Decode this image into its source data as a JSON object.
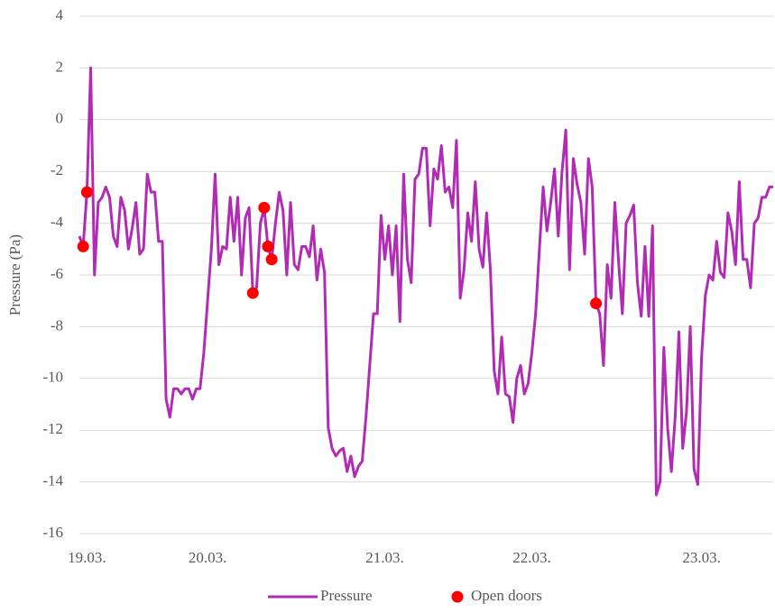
{
  "chart_data": {
    "type": "line",
    "y_label": "Pressure (Pa)",
    "categories": [
      null,
      null,
      "19.03.",
      null,
      null,
      null,
      null,
      null,
      null,
      null,
      null,
      null,
      null,
      null,
      null,
      null,
      null,
      null,
      null,
      null,
      null,
      null,
      null,
      null,
      null,
      null,
      null,
      null,
      null,
      null,
      null,
      null,
      null,
      null,
      "20.03.",
      null,
      null,
      null,
      null,
      null,
      null,
      null,
      null,
      null,
      null,
      null,
      null,
      null,
      null,
      null,
      null,
      null,
      null,
      null,
      null,
      null,
      null,
      null,
      null,
      null,
      null,
      null,
      null,
      null,
      null,
      null,
      null,
      null,
      null,
      null,
      null,
      null,
      null,
      null,
      null,
      null,
      null,
      null,
      null,
      null,
      null,
      "21.03.",
      null,
      null,
      null,
      null,
      null,
      null,
      null,
      null,
      null,
      null,
      null,
      null,
      null,
      null,
      null,
      null,
      null,
      null,
      null,
      null,
      null,
      null,
      null,
      null,
      null,
      null,
      null,
      null,
      null,
      null,
      null,
      null,
      null,
      null,
      null,
      null,
      null,
      null,
      "22.03.",
      null,
      null,
      null,
      null,
      null,
      null,
      null,
      null,
      null,
      null,
      null,
      null,
      null,
      null,
      null,
      null,
      null,
      null,
      null,
      null,
      null,
      null,
      null,
      null,
      null,
      null,
      null,
      null,
      null,
      null,
      null,
      null,
      null,
      null,
      null,
      null,
      null,
      null,
      null,
      null,
      null,
      null,
      null,
      null,
      "23.03.",
      null,
      null,
      null,
      null,
      null,
      null,
      null,
      null,
      null,
      null,
      null,
      null,
      null,
      null,
      null,
      null,
      null,
      null,
      null
    ],
    "series": [
      {
        "name": "Pressure",
        "color": "#b22bb5",
        "values": [
          -4.5,
          -4.9,
          -2.8,
          2.0,
          -6.0,
          -3.2,
          -3.0,
          -2.6,
          -3.0,
          -4.5,
          -4.9,
          -3.0,
          -3.5,
          -5.0,
          -4.2,
          -3.2,
          -5.2,
          -5.0,
          -2.1,
          -2.8,
          -2.8,
          -4.7,
          -4.7,
          -10.8,
          -11.5,
          -10.4,
          -10.4,
          -10.6,
          -10.4,
          -10.4,
          -10.8,
          -10.4,
          -10.4,
          -9.0,
          -7.0,
          -5.0,
          -2.1,
          -5.6,
          -4.9,
          -5.0,
          -3.0,
          -4.7,
          -3.0,
          -6.0,
          -3.8,
          -3.4,
          -6.7,
          -6.5,
          -4.0,
          -3.4,
          -4.9,
          -5.4,
          -4.0,
          -2.8,
          -3.5,
          -6.0,
          -3.2,
          -5.6,
          -5.8,
          -4.9,
          -4.9,
          -5.3,
          -4.1,
          -6.2,
          -5.0,
          -5.9,
          -11.9,
          -12.7,
          -13.0,
          -12.8,
          -12.7,
          -13.6,
          -13.0,
          -13.8,
          -13.4,
          -13.2,
          -11.5,
          -9.5,
          -7.5,
          -7.5,
          -3.7,
          -5.4,
          -4.1,
          -6.0,
          -4.1,
          -7.8,
          -2.1,
          -5.4,
          -6.3,
          -2.3,
          -2.1,
          -1.1,
          -1.1,
          -4.1,
          -1.9,
          -2.3,
          -1.0,
          -2.8,
          -2.6,
          -3.4,
          -0.8,
          -6.9,
          -5.8,
          -3.6,
          -4.7,
          -2.4,
          -5.0,
          -5.7,
          -3.6,
          -5.8,
          -9.7,
          -10.6,
          -8.4,
          -10.6,
          -10.7,
          -11.7,
          -10.0,
          -9.5,
          -10.6,
          -10.2,
          -9.0,
          -7.5,
          -5.0,
          -2.6,
          -4.3,
          -3.2,
          -1.9,
          -4.5,
          -2.0,
          -0.4,
          -5.8,
          -1.5,
          -2.5,
          -3.2,
          -5.2,
          -1.5,
          -2.6,
          -7.1,
          -7.5,
          -9.5,
          -5.6,
          -6.9,
          -3.2,
          -5.5,
          -7.5,
          -4.0,
          -3.7,
          -3.3,
          -6.3,
          -7.6,
          -4.9,
          -7.6,
          -4.1,
          -14.5,
          -14.0,
          -8.8,
          -11.9,
          -13.6,
          -11.5,
          -8.2,
          -12.7,
          -11.3,
          -8.0,
          -13.5,
          -14.1,
          -9.2,
          -6.8,
          -6.0,
          -6.2,
          -4.7,
          -5.9,
          -6.1,
          -3.6,
          -4.3,
          -5.6,
          -2.4,
          -5.4,
          -5.4,
          -6.5,
          -4.0,
          -3.8,
          -3.0,
          -3.0,
          -2.6,
          -2.6
        ]
      },
      {
        "name": "Open doors",
        "color": "#ff0000",
        "type": "scatter",
        "values": [
          null,
          -4.9,
          -2.8,
          null,
          null,
          null,
          null,
          null,
          null,
          null,
          null,
          null,
          null,
          null,
          null,
          null,
          null,
          null,
          null,
          null,
          null,
          null,
          null,
          null,
          null,
          null,
          null,
          null,
          null,
          null,
          null,
          null,
          null,
          null,
          null,
          null,
          null,
          null,
          null,
          null,
          null,
          null,
          null,
          null,
          null,
          null,
          -6.7,
          null,
          null,
          -3.4,
          -4.9,
          -5.4,
          null,
          null,
          null,
          null,
          null,
          null,
          null,
          null,
          null,
          null,
          null,
          null,
          null,
          null,
          null,
          null,
          null,
          null,
          null,
          null,
          null,
          null,
          null,
          null,
          null,
          null,
          null,
          null,
          null,
          null,
          null,
          null,
          null,
          null,
          null,
          null,
          null,
          null,
          null,
          null,
          null,
          null,
          null,
          null,
          null,
          null,
          null,
          null,
          null,
          null,
          null,
          null,
          null,
          null,
          null,
          null,
          null,
          null,
          null,
          null,
          null,
          null,
          null,
          null,
          null,
          null,
          null,
          null,
          null,
          null,
          null,
          null,
          null,
          null,
          null,
          null,
          null,
          null,
          null,
          null,
          null,
          null,
          null,
          null,
          null,
          -7.1,
          null,
          null,
          null,
          null,
          null,
          null,
          null,
          null,
          null,
          null,
          null,
          null,
          null,
          null,
          null,
          null,
          null,
          null,
          null,
          null,
          null,
          null,
          null,
          null,
          null,
          null,
          null,
          null,
          null,
          null,
          null,
          null,
          null,
          null,
          null,
          null,
          null,
          null,
          null,
          null,
          null,
          null,
          null,
          null,
          null,
          null,
          null
        ]
      }
    ],
    "ylim": [
      -16,
      4
    ],
    "yticks": [
      -16,
      -14,
      -12,
      -10,
      -8,
      -6,
      -4,
      -2,
      0,
      2,
      4
    ],
    "grid": true,
    "legend": "bottom"
  }
}
